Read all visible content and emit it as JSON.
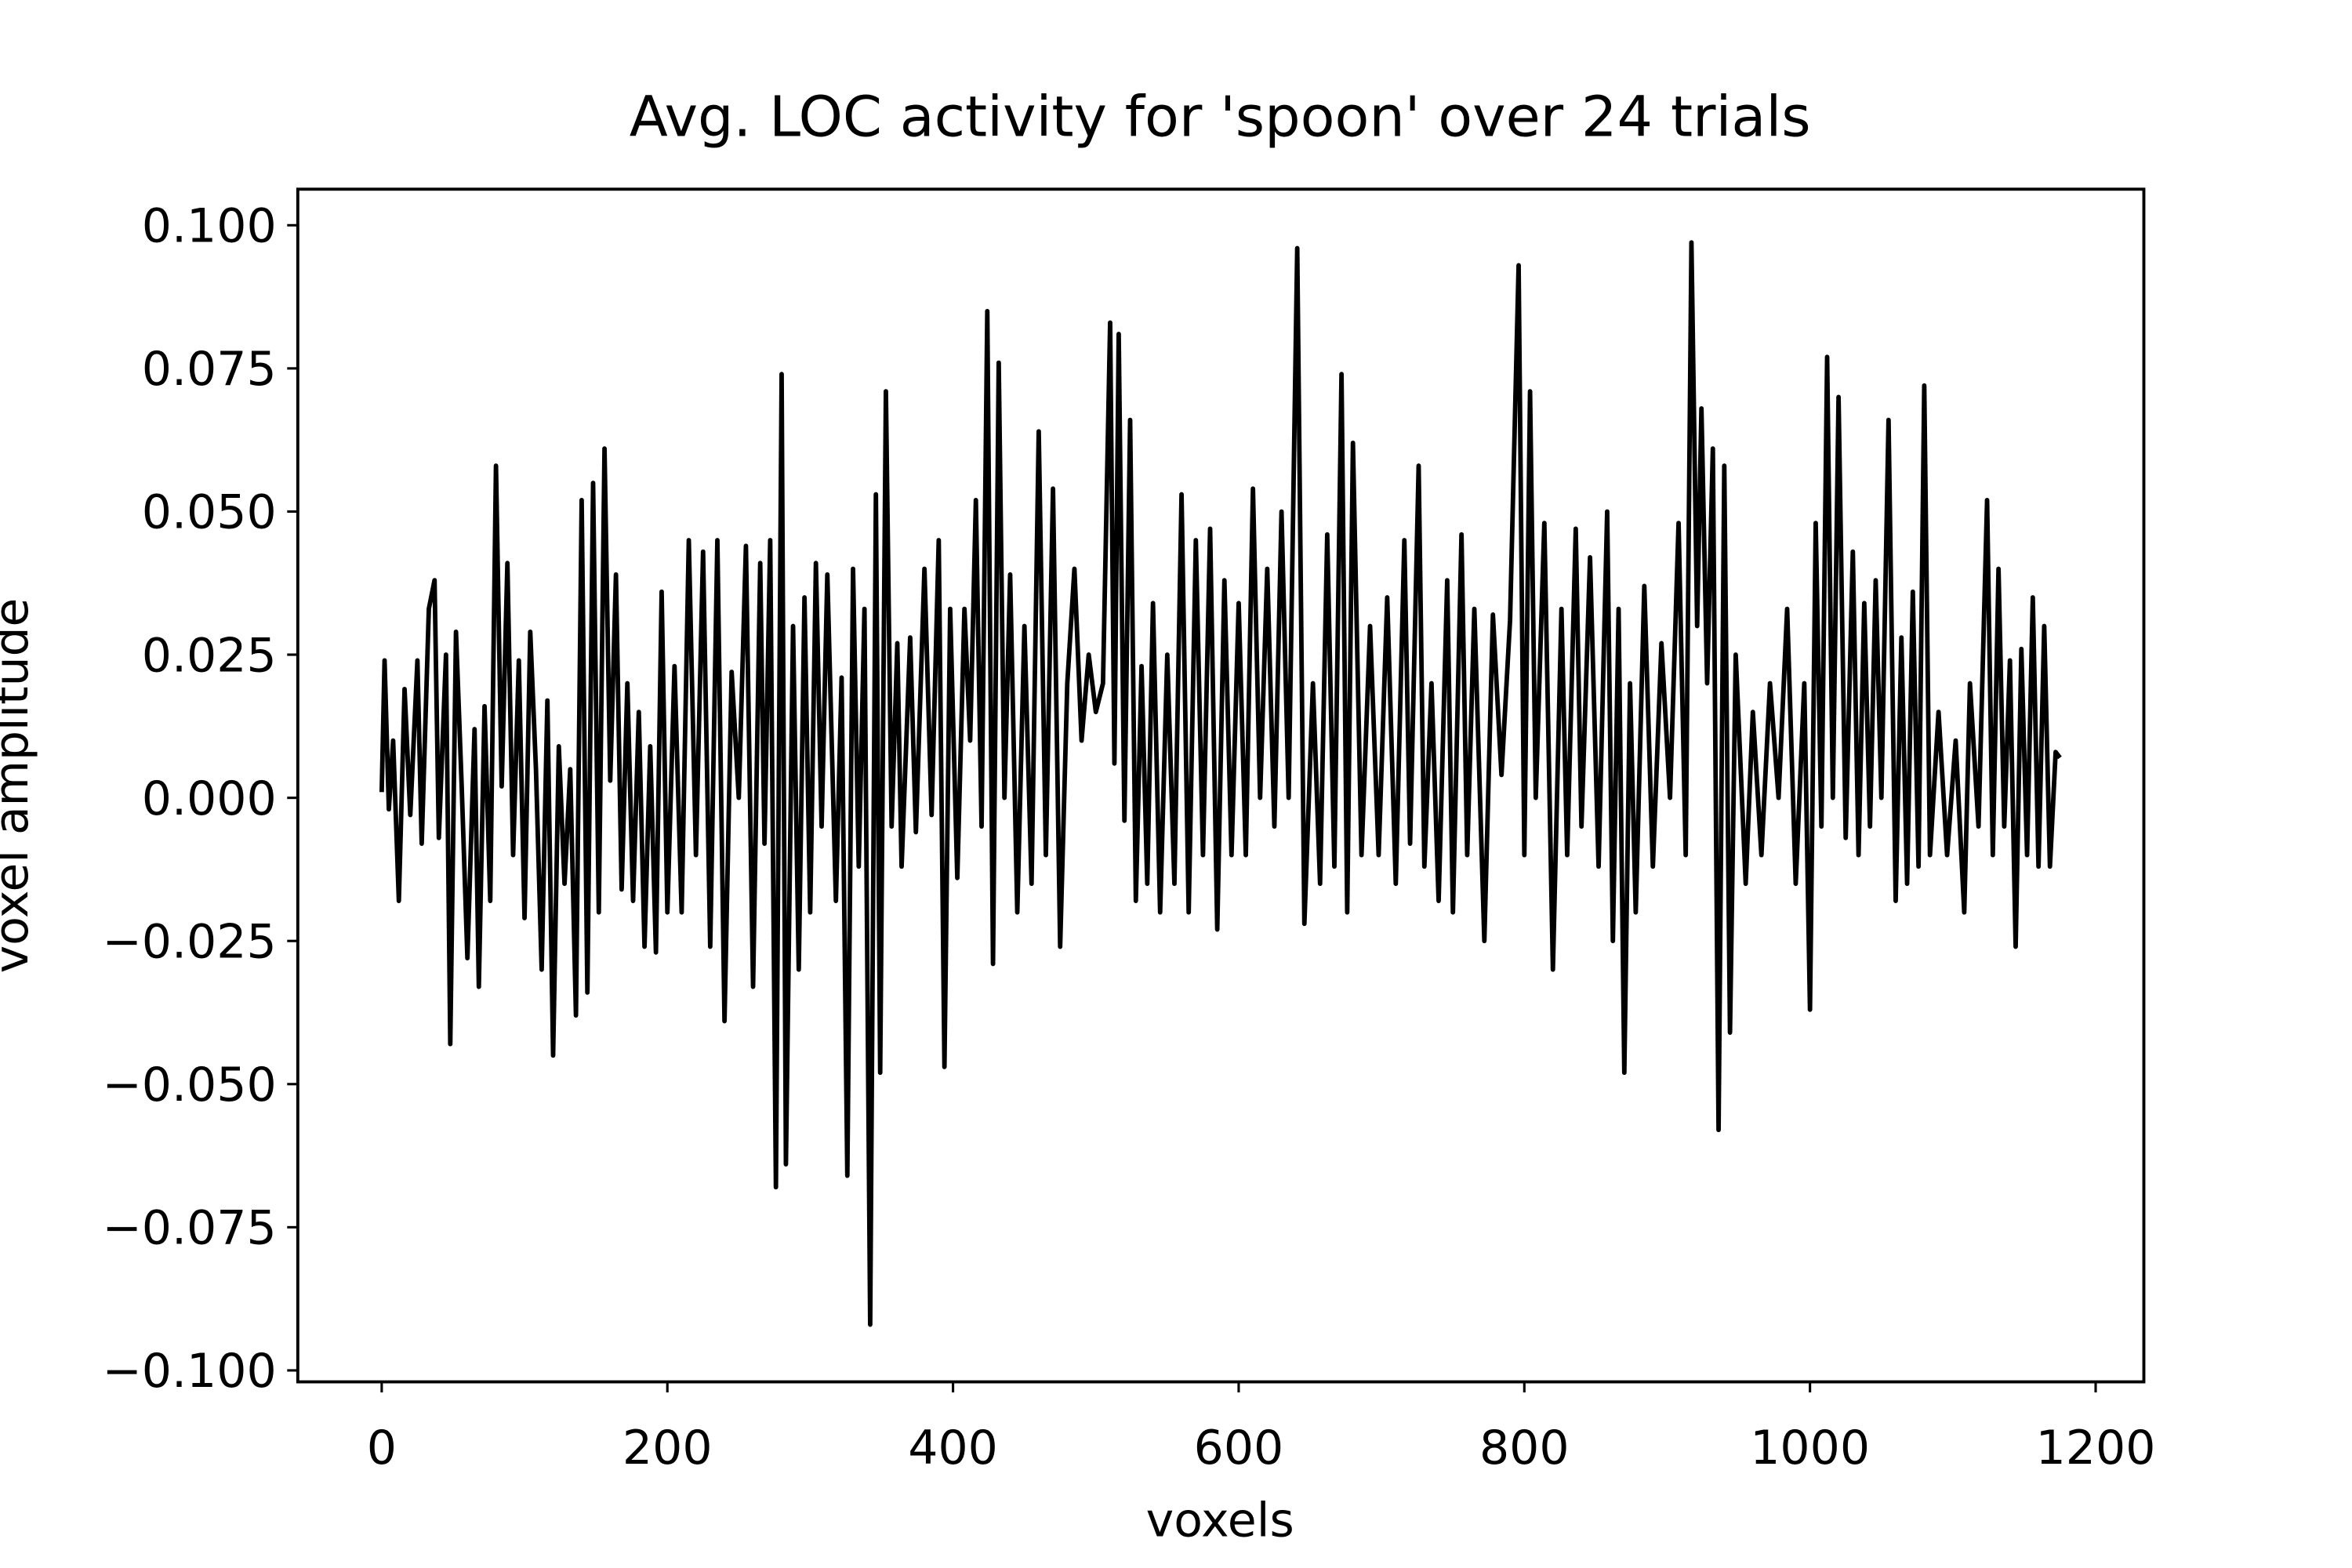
{
  "chart_data": {
    "type": "line",
    "title": "Avg. LOC activity for 'spoon' over 24 trials",
    "xlabel": "voxels",
    "ylabel": "voxel amplitude",
    "color": "#000000",
    "xlim": [
      -58.75,
      1233.75
    ],
    "xticks": [
      0,
      200,
      400,
      600,
      800,
      1000,
      1200
    ],
    "ylim": [
      -0.102,
      0.1063
    ],
    "yticks": [
      {
        "value": -0.1,
        "label": "−0.100"
      },
      {
        "value": -0.075,
        "label": "−0.075"
      },
      {
        "value": -0.05,
        "label": "−0.050"
      },
      {
        "value": -0.025,
        "label": "−0.025"
      },
      {
        "value": 0,
        "label": "0.000"
      },
      {
        "value": 0.025,
        "label": "0.025"
      },
      {
        "value": 0.05,
        "label": "0.050"
      },
      {
        "value": 0.075,
        "label": "0.075"
      },
      {
        "value": 0.1,
        "label": "0.100"
      }
    ],
    "x": [
      0,
      2,
      5,
      8,
      12,
      16,
      20,
      25,
      28,
      33,
      37,
      40,
      45,
      48,
      52,
      56,
      60,
      65,
      68,
      72,
      76,
      80,
      84,
      88,
      92,
      96,
      100,
      104,
      108,
      112,
      116,
      120,
      124,
      128,
      132,
      136,
      140,
      144,
      148,
      152,
      156,
      160,
      164,
      168,
      172,
      176,
      180,
      184,
      188,
      192,
      196,
      200,
      205,
      210,
      215,
      220,
      225,
      230,
      235,
      240,
      245,
      250,
      255,
      260,
      265,
      268,
      272,
      276,
      280,
      283,
      288,
      292,
      296,
      300,
      304,
      308,
      312,
      318,
      322,
      326,
      330,
      334,
      338,
      342,
      346,
      349,
      353,
      357,
      361,
      364,
      370,
      374,
      380,
      385,
      390,
      394,
      398,
      403,
      408,
      412,
      416,
      420,
      424,
      428,
      432,
      436,
      440,
      445,
      450,
      455,
      460,
      465,
      470,
      475,
      480,
      485,
      490,
      495,
      500,
      505,
      510,
      513,
      516,
      520,
      524,
      528,
      532,
      536,
      540,
      545,
      550,
      555,
      560,
      565,
      570,
      575,
      580,
      585,
      590,
      595,
      600,
      605,
      610,
      615,
      620,
      625,
      630,
      635,
      641,
      646,
      652,
      657,
      662,
      667,
      672,
      676,
      680,
      686,
      692,
      698,
      704,
      710,
      716,
      720,
      726,
      730,
      735,
      740,
      746,
      750,
      756,
      760,
      765,
      772,
      778,
      784,
      790,
      796,
      800,
      804,
      808,
      814,
      820,
      826,
      830,
      836,
      840,
      846,
      852,
      858,
      862,
      866,
      870,
      874,
      878,
      884,
      890,
      896,
      902,
      908,
      913,
      917,
      921,
      924,
      928,
      932,
      936,
      940,
      944,
      948,
      955,
      960,
      966,
      972,
      978,
      984,
      990,
      996,
      1000,
      1004,
      1008,
      1012,
      1016,
      1020,
      1025,
      1030,
      1034,
      1038,
      1042,
      1046,
      1050,
      1055,
      1060,
      1064,
      1068,
      1072,
      1076,
      1080,
      1084,
      1090,
      1096,
      1102,
      1108,
      1112,
      1118,
      1124,
      1128,
      1132,
      1136,
      1140,
      1144,
      1148,
      1152,
      1156,
      1160,
      1164,
      1168,
      1172,
      1175
    ],
    "values": [
      0.001,
      0.024,
      -0.002,
      0.01,
      -0.018,
      0.019,
      -0.003,
      0.024,
      -0.008,
      0.033,
      0.038,
      -0.007,
      0.025,
      -0.043,
      0.029,
      0.002,
      -0.028,
      0.012,
      -0.033,
      0.016,
      -0.018,
      0.058,
      0.002,
      0.041,
      -0.01,
      0.024,
      -0.021,
      0.029,
      0.005,
      -0.03,
      0.017,
      -0.045,
      0.009,
      -0.015,
      0.005,
      -0.038,
      0.052,
      -0.034,
      0.055,
      -0.02,
      0.061,
      0.003,
      0.039,
      -0.016,
      0.02,
      -0.018,
      0.015,
      -0.026,
      0.009,
      -0.027,
      0.036,
      -0.02,
      0.023,
      -0.02,
      0.045,
      -0.01,
      0.043,
      -0.026,
      0.045,
      -0.039,
      0.022,
      0.0,
      0.044,
      -0.033,
      0.041,
      -0.008,
      0.045,
      -0.068,
      0.074,
      -0.064,
      0.03,
      -0.03,
      0.035,
      -0.02,
      0.041,
      -0.005,
      0.039,
      -0.018,
      0.021,
      -0.066,
      0.04,
      -0.012,
      0.033,
      -0.092,
      0.053,
      -0.048,
      0.071,
      -0.005,
      0.027,
      -0.012,
      0.028,
      -0.006,
      0.04,
      -0.003,
      0.045,
      -0.047,
      0.033,
      -0.014,
      0.033,
      0.01,
      0.052,
      -0.005,
      0.085,
      -0.029,
      0.076,
      0.0,
      0.039,
      -0.02,
      0.03,
      -0.015,
      0.064,
      -0.01,
      0.054,
      -0.026,
      0.02,
      0.04,
      0.01,
      0.025,
      0.015,
      0.02,
      0.083,
      0.006,
      0.081,
      -0.004,
      0.066,
      -0.018,
      0.023,
      -0.015,
      0.034,
      -0.02,
      0.025,
      -0.015,
      0.053,
      -0.02,
      0.045,
      -0.01,
      0.047,
      -0.023,
      0.038,
      -0.01,
      0.034,
      -0.01,
      0.054,
      0.0,
      0.04,
      -0.005,
      0.05,
      0.0,
      0.096,
      -0.022,
      0.02,
      -0.015,
      0.046,
      -0.012,
      0.074,
      -0.02,
      0.062,
      -0.01,
      0.03,
      -0.01,
      0.035,
      -0.015,
      0.045,
      -0.008,
      0.058,
      -0.012,
      0.02,
      -0.018,
      0.038,
      -0.02,
      0.046,
      -0.01,
      0.033,
      -0.025,
      0.032,
      0.004,
      0.031,
      0.093,
      -0.01,
      0.071,
      0.0,
      0.048,
      -0.03,
      0.033,
      -0.01,
      0.047,
      -0.005,
      0.042,
      -0.012,
      0.05,
      -0.025,
      0.033,
      -0.048,
      0.02,
      -0.02,
      0.037,
      -0.012,
      0.027,
      0.0,
      0.048,
      -0.01,
      0.097,
      0.03,
      0.068,
      0.02,
      0.061,
      -0.058,
      0.058,
      -0.041,
      0.025,
      -0.015,
      0.015,
      -0.01,
      0.02,
      0.0,
      0.033,
      -0.015,
      0.02,
      -0.037,
      0.048,
      -0.005,
      0.077,
      0.0,
      0.07,
      -0.007,
      0.043,
      -0.01,
      0.034,
      -0.005,
      0.038,
      0.0,
      0.066,
      -0.018,
      0.028,
      -0.015,
      0.036,
      -0.012,
      0.072,
      -0.01,
      0.015,
      -0.01,
      0.01,
      -0.02,
      0.02,
      -0.005,
      0.052,
      -0.01,
      0.04,
      -0.005,
      0.024,
      -0.026,
      0.026,
      -0.01,
      0.035,
      -0.012,
      0.03,
      -0.012,
      0.008,
      0.007
    ]
  }
}
